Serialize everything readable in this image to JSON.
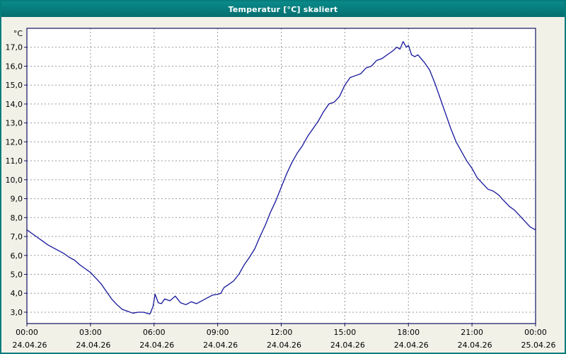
{
  "window": {
    "title": "Temperatur [°C] skaliert",
    "titlebar_color": "#067d7d"
  },
  "chart_data": {
    "type": "line",
    "title": "Temperatur [°C] skaliert",
    "y_unit_label": "°C",
    "grid": true,
    "line_color": "#16169B",
    "frame_color": "#101060",
    "grid_color": "#9a9a9a",
    "plot_bg": "#ffffff",
    "ylim": [
      2.4,
      18.0
    ],
    "y_ticks": [
      3,
      4,
      5,
      6,
      7,
      8,
      9,
      10,
      11,
      12,
      13,
      14,
      15,
      16,
      17
    ],
    "y_tick_labels": [
      "3,0",
      "4,0",
      "5,0",
      "6,0",
      "7,0",
      "8,0",
      "9,0",
      "10,0",
      "11,0",
      "12,0",
      "13,0",
      "14,0",
      "15,0",
      "16,0",
      "17,0"
    ],
    "x_ticks_hours": [
      0,
      3,
      6,
      9,
      12,
      15,
      18,
      21,
      24
    ],
    "x_tick_labels": [
      "00:00",
      "03:00",
      "06:00",
      "09:00",
      "12:00",
      "15:00",
      "18:00",
      "21:00",
      "00:00"
    ],
    "x_date_labels": [
      "24.04.26",
      "24.04.26",
      "24.04.26",
      "24.04.26",
      "24.04.26",
      "24.04.26",
      "24.04.26",
      "24.04.26",
      "25.04.26"
    ],
    "series": [
      {
        "name": "Temperatur",
        "x_hours": [
          0,
          0.25,
          0.5,
          0.75,
          1,
          1.25,
          1.5,
          1.75,
          2,
          2.25,
          2.5,
          2.75,
          3,
          3.25,
          3.5,
          3.75,
          4,
          4.25,
          4.5,
          4.75,
          5,
          5.25,
          5.5,
          5.65,
          5.8,
          5.95,
          6.05,
          6.2,
          6.35,
          6.5,
          6.75,
          7,
          7.25,
          7.5,
          7.75,
          8,
          8.25,
          8.5,
          8.75,
          9,
          9.15,
          9.3,
          9.5,
          9.75,
          10,
          10.25,
          10.5,
          10.75,
          11,
          11.25,
          11.5,
          11.75,
          12,
          12.25,
          12.5,
          12.75,
          13,
          13.25,
          13.5,
          13.75,
          14,
          14.25,
          14.5,
          14.75,
          15,
          15.25,
          15.5,
          15.75,
          16,
          16.25,
          16.5,
          16.75,
          17,
          17.25,
          17.45,
          17.6,
          17.75,
          17.9,
          18,
          18.15,
          18.3,
          18.45,
          18.6,
          18.75,
          19,
          19.25,
          19.5,
          19.75,
          20,
          20.25,
          20.5,
          20.75,
          21,
          21.25,
          21.5,
          21.75,
          22,
          22.25,
          22.5,
          22.75,
          23,
          23.25,
          23.5,
          23.75,
          24
        ],
        "values": [
          7.35,
          7.15,
          6.95,
          6.75,
          6.55,
          6.4,
          6.25,
          6.1,
          5.9,
          5.75,
          5.5,
          5.3,
          5.1,
          4.8,
          4.5,
          4.1,
          3.7,
          3.4,
          3.15,
          3.05,
          2.95,
          3.0,
          3.0,
          2.95,
          2.9,
          3.3,
          3.95,
          3.5,
          3.45,
          3.7,
          3.6,
          3.85,
          3.5,
          3.4,
          3.55,
          3.45,
          3.6,
          3.75,
          3.9,
          3.95,
          4.0,
          4.3,
          4.45,
          4.65,
          5.0,
          5.5,
          5.9,
          6.35,
          7.0,
          7.6,
          8.3,
          8.9,
          9.6,
          10.3,
          10.9,
          11.4,
          11.8,
          12.3,
          12.7,
          13.1,
          13.6,
          14.0,
          14.1,
          14.4,
          15.0,
          15.4,
          15.5,
          15.6,
          15.9,
          16.0,
          16.3,
          16.4,
          16.6,
          16.8,
          17.0,
          16.9,
          17.3,
          17.0,
          17.1,
          16.6,
          16.5,
          16.6,
          16.4,
          16.2,
          15.8,
          15.1,
          14.3,
          13.5,
          12.7,
          12.0,
          11.5,
          11.0,
          10.6,
          10.1,
          9.8,
          9.5,
          9.4,
          9.2,
          8.9,
          8.6,
          8.4,
          8.1,
          7.8,
          7.5,
          7.35
        ]
      }
    ]
  }
}
